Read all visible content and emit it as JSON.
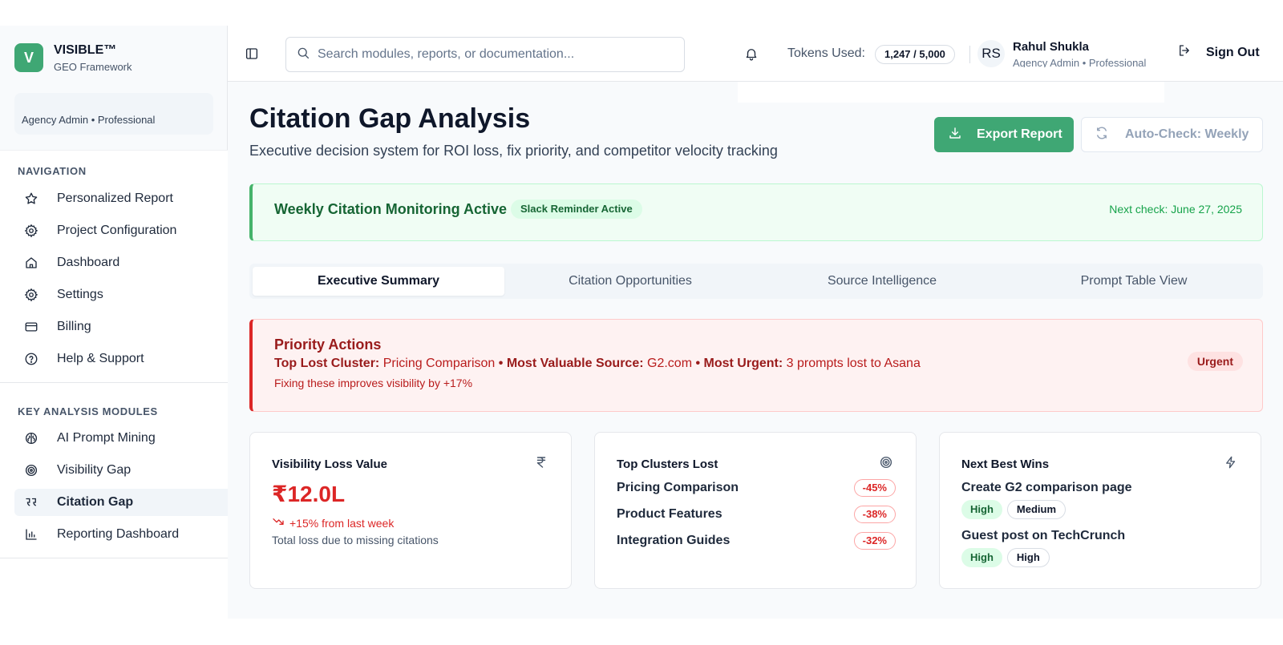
{
  "brand": {
    "logo_letter": "V",
    "name": "VISIBLE™",
    "subtitle": "GEO Framework"
  },
  "sidebar": {
    "role": "Agency Admin • Professional",
    "navigation_title": "NAVIGATION",
    "navigation": [
      {
        "label": "Personalized Report",
        "icon": "star-icon"
      },
      {
        "label": "Project Configuration",
        "icon": "gear-icon"
      },
      {
        "label": "Dashboard",
        "icon": "home-icon"
      },
      {
        "label": "Settings",
        "icon": "gear-icon"
      },
      {
        "label": "Billing",
        "icon": "credit-card-icon"
      },
      {
        "label": "Help & Support",
        "icon": "help-circle-icon"
      }
    ],
    "modules_title": "KEY ANALYSIS MODULES",
    "modules": [
      {
        "label": "AI Prompt Mining",
        "icon": "brain-icon"
      },
      {
        "label": "Visibility Gap",
        "icon": "target-icon"
      },
      {
        "label": "Citation Gap",
        "icon": "quote-icon",
        "active": true
      },
      {
        "label": "Reporting Dashboard",
        "icon": "bar-chart-icon"
      }
    ]
  },
  "topbar": {
    "search_placeholder": "Search modules, reports, or documentation...",
    "tokens_label": "Tokens Used:",
    "tokens_value": "1,247 / 5,000",
    "user_initials": "RS",
    "user_name": "Rahul Shukla",
    "user_role": "Agency Admin • Professional",
    "sign_out": "Sign Out"
  },
  "header": {
    "title": "Citation Gap Analysis",
    "subtitle": "Executive decision system for ROI loss, fix priority, and competitor velocity tracking",
    "export_label": "Export Report",
    "auto_check_label": "Auto-Check: Weekly"
  },
  "monitoring": {
    "title": "Weekly Citation Monitoring Active",
    "badge": "Slack Reminder Active",
    "next_check": "Next check: June 27, 2025"
  },
  "tabs": [
    {
      "label": "Executive Summary",
      "active": true
    },
    {
      "label": "Citation Opportunities"
    },
    {
      "label": "Source Intelligence"
    },
    {
      "label": "Prompt Table View"
    }
  ],
  "priority": {
    "title": "Priority Actions",
    "cluster_label": "Top Lost Cluster:",
    "cluster_value": "Pricing Comparison",
    "sep1": "•",
    "source_label": "Most Valuable Source:",
    "source_value": "G2.com",
    "sep2": "•",
    "urgent_label": "Most Urgent:",
    "urgent_value": "3 prompts lost to Asana",
    "note": "Fixing these improves visibility by +17%",
    "badge": "Urgent"
  },
  "cards": {
    "loss": {
      "title": "Visibility Loss Value",
      "icon": "rupee-icon",
      "value": "₹12.0L",
      "trend": "+15% from last week",
      "note": "Total loss due to missing citations"
    },
    "clusters": {
      "title": "Top Clusters Lost",
      "icon": "target-icon",
      "rows": [
        {
          "name": "Pricing Comparison",
          "pct": "-45%"
        },
        {
          "name": "Product Features",
          "pct": "-38%"
        },
        {
          "name": "Integration Guides",
          "pct": "-32%"
        }
      ]
    },
    "wins": {
      "title": "Next Best Wins",
      "icon": "lightning-icon",
      "items": [
        {
          "title": "Create G2 comparison page",
          "tag1": "High",
          "tag2": "Medium"
        },
        {
          "title": "Guest post on TechCrunch",
          "tag1": "High",
          "tag2": "High"
        }
      ]
    }
  },
  "colors": {
    "accent": "#3fa774",
    "danger": "#dc2626",
    "success_bg": "#f0fdf4",
    "danger_bg": "#fef2f2"
  }
}
